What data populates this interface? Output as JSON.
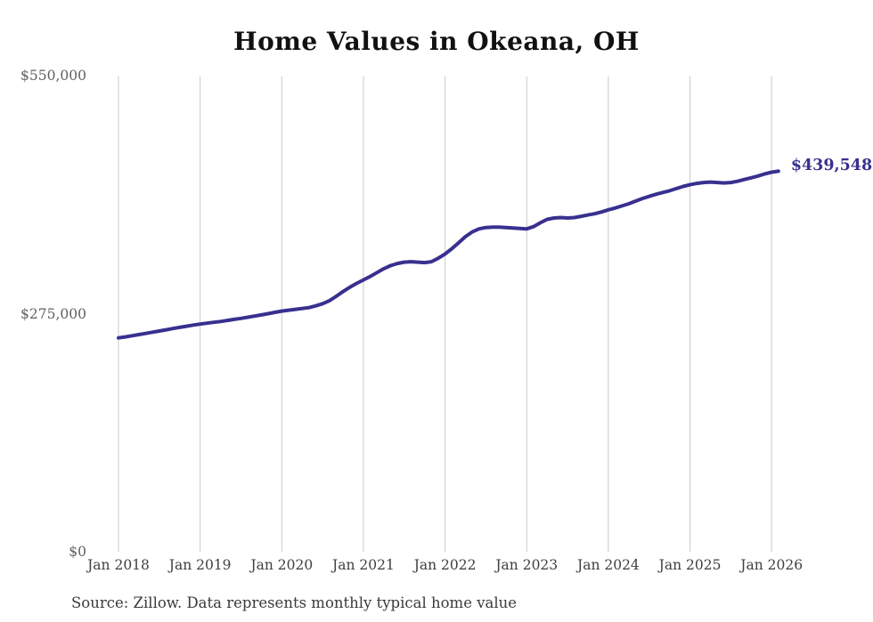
{
  "source_note": "Source: Zillow. Data represents monthly typical home value",
  "colors": {
    "background": "#ffffff",
    "line": "#38308f",
    "grid": "#c9c9c9",
    "title": "#111111",
    "x_tick": "#3f3f3f",
    "y_tick": "#606060",
    "end_label": "#38308f",
    "source": "#3a3a3a"
  },
  "chart_data": {
    "type": "line",
    "title": "Home Values in Okeana, OH",
    "xlabel": "",
    "ylabel": "",
    "ylim": [
      0,
      550000
    ],
    "grid": "vertical-yearly-gridlines",
    "legend": "none",
    "end_label": "$439,548",
    "end_value": 439548,
    "y_ticks": [
      {
        "label": "$0",
        "value": 0
      },
      {
        "label": "$275,000",
        "value": 275000
      },
      {
        "label": "$550,000",
        "value": 550000
      }
    ],
    "x_tick_labels": [
      "Jan 2018",
      "Jan 2019",
      "Jan 2020",
      "Jan 2021",
      "Jan 2022",
      "Jan 2023",
      "Jan 2024",
      "Jan 2025",
      "Jan 2026"
    ],
    "series": [
      {
        "name": "Typical home value (monthly)",
        "color": "#38308f",
        "x_start": "2018-01",
        "x_interval": "month",
        "x": [
          "2018-01",
          "2018-02",
          "2018-03",
          "2018-04",
          "2018-05",
          "2018-06",
          "2018-07",
          "2018-08",
          "2018-09",
          "2018-10",
          "2018-11",
          "2018-12",
          "2019-01",
          "2019-02",
          "2019-03",
          "2019-04",
          "2019-05",
          "2019-06",
          "2019-07",
          "2019-08",
          "2019-09",
          "2019-10",
          "2019-11",
          "2019-12",
          "2020-01",
          "2020-02",
          "2020-03",
          "2020-04",
          "2020-05",
          "2020-06",
          "2020-07",
          "2020-08",
          "2020-09",
          "2020-10",
          "2020-11",
          "2020-12",
          "2021-01",
          "2021-02",
          "2021-03",
          "2021-04",
          "2021-05",
          "2021-06",
          "2021-07",
          "2021-08",
          "2021-09",
          "2021-10",
          "2021-11",
          "2021-12",
          "2022-01",
          "2022-02",
          "2022-03",
          "2022-04",
          "2022-05",
          "2022-06",
          "2022-07",
          "2022-08",
          "2022-09",
          "2022-10",
          "2022-11",
          "2022-12",
          "2023-01",
          "2023-02",
          "2023-03",
          "2023-04",
          "2023-05",
          "2023-06",
          "2023-07",
          "2023-08",
          "2023-09",
          "2023-10",
          "2023-11",
          "2023-12",
          "2024-01",
          "2024-02",
          "2024-03",
          "2024-04",
          "2024-05",
          "2024-06",
          "2024-07",
          "2024-08",
          "2024-09",
          "2024-10",
          "2024-11",
          "2024-12",
          "2025-01",
          "2025-02",
          "2025-03",
          "2025-04",
          "2025-05",
          "2025-06",
          "2025-07",
          "2025-08",
          "2025-09",
          "2025-10",
          "2025-11",
          "2025-12",
          "2026-01",
          "2026-02"
        ],
        "values": [
          247000,
          248200,
          249500,
          250800,
          252200,
          253600,
          255000,
          256400,
          257800,
          259200,
          260500,
          261800,
          263000,
          264000,
          265000,
          266000,
          267200,
          268400,
          269600,
          270900,
          272200,
          273600,
          275000,
          276500,
          278000,
          279000,
          280000,
          281000,
          282000,
          284000,
          286500,
          290000,
          295000,
          300500,
          305500,
          310000,
          314000,
          318000,
          322500,
          327000,
          330500,
          333000,
          334500,
          335000,
          334500,
          334000,
          335000,
          339000,
          344000,
          350000,
          357000,
          364000,
          369500,
          373000,
          374500,
          375000,
          375000,
          374500,
          374000,
          373500,
          373000,
          375500,
          380000,
          384000,
          385500,
          386000,
          385500,
          386000,
          387500,
          389000,
          390500,
          392500,
          395000,
          397000,
          399500,
          402000,
          405000,
          408000,
          410500,
          413000,
          415000,
          417000,
          419500,
          422000,
          424000,
          425500,
          426500,
          427000,
          426500,
          426000,
          426500,
          428000,
          430000,
          432000,
          434000,
          436500,
          438500,
          439548
        ]
      }
    ]
  }
}
